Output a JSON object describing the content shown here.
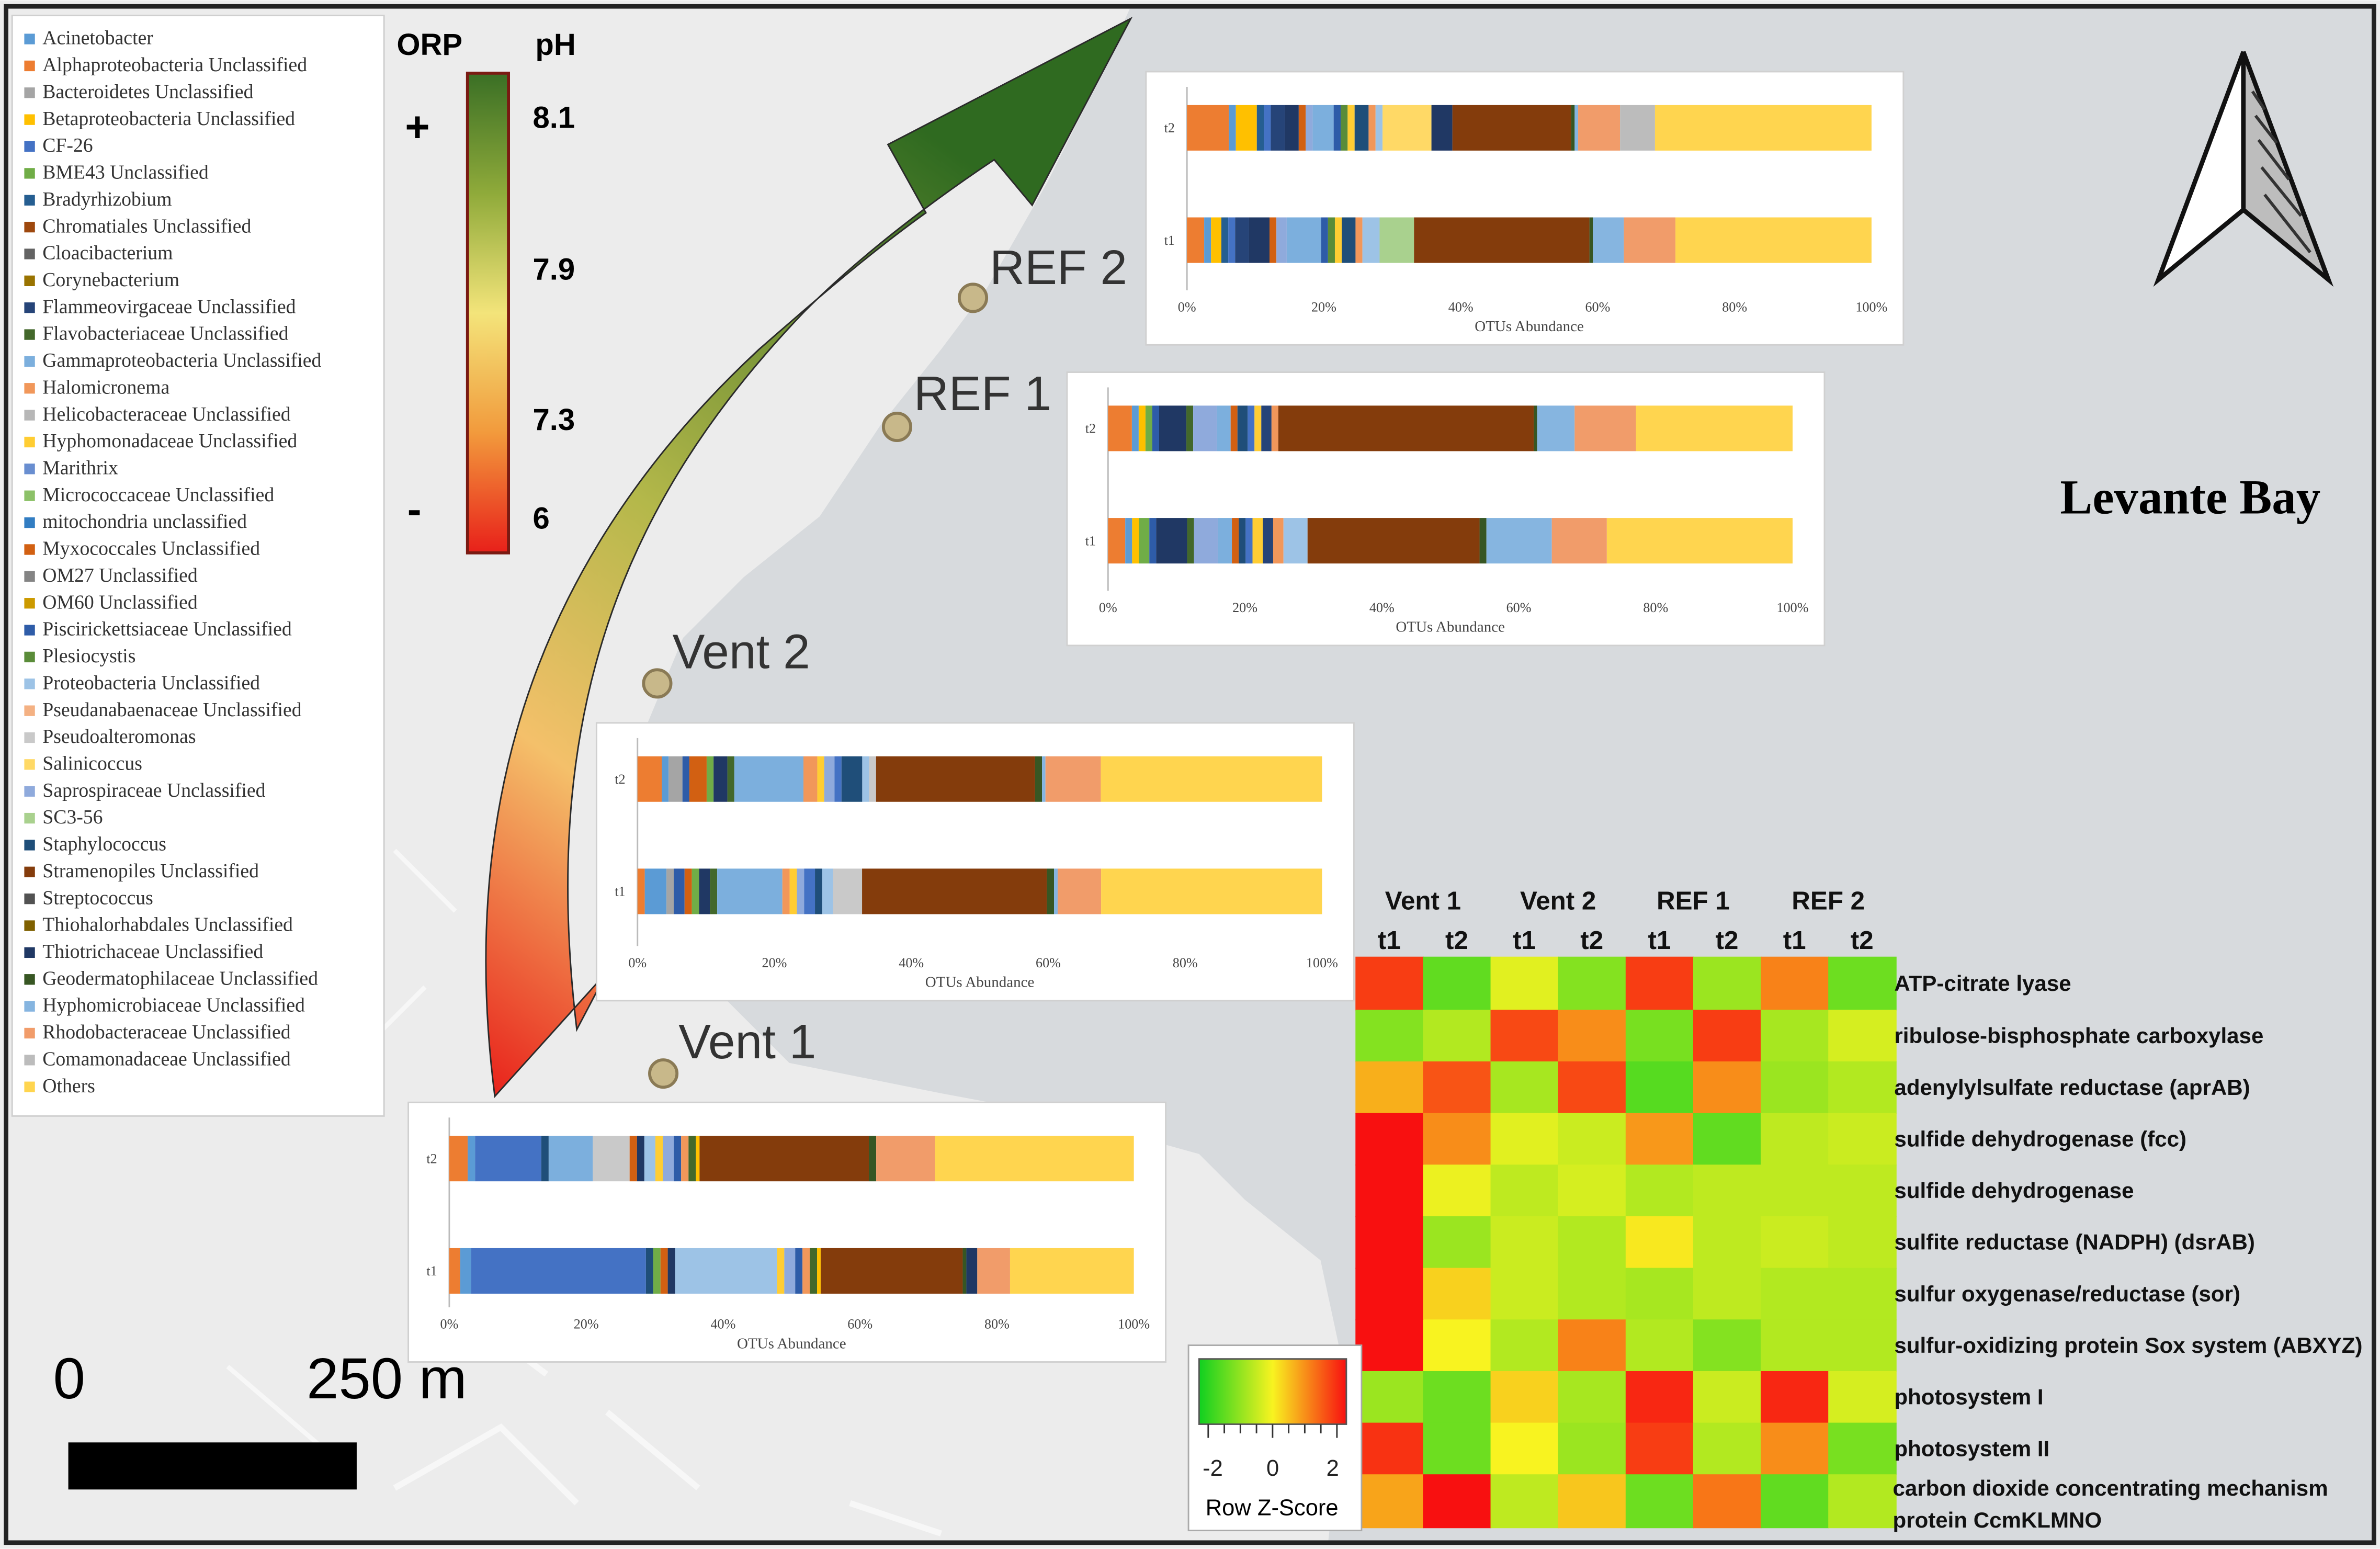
{
  "map": {
    "title": "Levante Bay",
    "sites": [
      "REF 2",
      "REF 1",
      "Vent 2",
      "Vent 1"
    ],
    "scale": {
      "start": "0",
      "end": "250 m"
    }
  },
  "gradient": {
    "orp_label": "ORP",
    "ph_label": "pH",
    "plus": "+",
    "minus": "-",
    "ph_ticks": [
      "8.1",
      "7.9",
      "7.3",
      "6"
    ],
    "colors": [
      "#3a6f25",
      "#8faa3a",
      "#f3e47a",
      "#f29a3c",
      "#e8201a"
    ]
  },
  "legend": [
    {
      "name": "Acinetobacter",
      "color": "#5b9bd5"
    },
    {
      "name": "Alphaproteobacteria Unclassified",
      "color": "#ed7d31"
    },
    {
      "name": "Bacteroidetes Unclassified",
      "color": "#a5a5a5"
    },
    {
      "name": "Betaproteobacteria Unclassified",
      "color": "#ffc000"
    },
    {
      "name": "CF-26",
      "color": "#4472c4"
    },
    {
      "name": "BME43 Unclassified",
      "color": "#70ad47"
    },
    {
      "name": "Bradyrhizobium",
      "color": "#255e91"
    },
    {
      "name": "Chromatiales Unclassified",
      "color": "#9e480e"
    },
    {
      "name": "Cloacibacterium",
      "color": "#636363"
    },
    {
      "name": "Corynebacterium",
      "color": "#997300"
    },
    {
      "name": "Flammeovirgaceae Unclassified",
      "color": "#264478"
    },
    {
      "name": "Flavobacteriaceae Unclassified",
      "color": "#43682b"
    },
    {
      "name": "Gammaproteobacteria Unclassified",
      "color": "#7cafdd"
    },
    {
      "name": "Halomicronema",
      "color": "#f1975a"
    },
    {
      "name": "Helicobacteraceae Unclassified",
      "color": "#b7b7b7"
    },
    {
      "name": "Hyphomonadaceae Unclassified",
      "color": "#ffcd33"
    },
    {
      "name": "Marithrix",
      "color": "#698ed0"
    },
    {
      "name": "Micrococcaceae Unclassified",
      "color": "#8cc168"
    },
    {
      "name": "mitochondria unclassified",
      "color": "#327dc2"
    },
    {
      "name": "Myxococcales Unclassified",
      "color": "#d26012"
    },
    {
      "name": "OM27 Unclassified",
      "color": "#848484"
    },
    {
      "name": "OM60 Unclassified",
      "color": "#cc9a00"
    },
    {
      "name": "Piscirickettsiaceae Unclassified",
      "color": "#2e5ca8"
    },
    {
      "name": "Plesiocystis",
      "color": "#5a8c39"
    },
    {
      "name": "Proteobacteria Unclassified",
      "color": "#9dc3e6"
    },
    {
      "name": "Pseudanabaenaceae Unclassified",
      "color": "#f4b183"
    },
    {
      "name": "Pseudoalteromonas",
      "color": "#c9c9c9"
    },
    {
      "name": "Salinicoccus",
      "color": "#ffd966"
    },
    {
      "name": "Saprospiraceae Unclassified",
      "color": "#8faadc"
    },
    {
      "name": "SC3-56",
      "color": "#a9d18e"
    },
    {
      "name": "Staphylococcus",
      "color": "#1f4e79"
    },
    {
      "name": "Stramenopiles Unclassified",
      "color": "#843c0c"
    },
    {
      "name": "Streptococcus",
      "color": "#525252"
    },
    {
      "name": "Thiohalorhabdales Unclassified",
      "color": "#7f6000"
    },
    {
      "name": "Thiotrichaceae Unclassified",
      "color": "#203864"
    },
    {
      "name": "Geodermatophilaceae Unclassified",
      "color": "#375623"
    },
    {
      "name": "Hyphomicrobiaceae Unclassified",
      "color": "#86b5e0"
    },
    {
      "name": "Rhodobacteraceae Unclassified",
      "color": "#f19c6a"
    },
    {
      "name": "Comamonadaceae Unclassified",
      "color": "#bcbcbc"
    },
    {
      "name": "Others",
      "color": "#ffd54f"
    }
  ],
  "chart_data": [
    {
      "type": "bar",
      "orientation": "horizontal-stacked",
      "site": "REF 2",
      "categories": [
        "t2",
        "t1"
      ],
      "xlabel": "OTUs Abundance",
      "xticks": [
        "0%",
        "20%",
        "40%",
        "60%",
        "80%",
        "100%"
      ],
      "xlim": [
        0,
        100
      ],
      "series": [
        {
          "name": "Alphaproteobacteria Unclassified",
          "values": [
            6,
            2.5
          ]
        },
        {
          "name": "Acinetobacter",
          "values": [
            1,
            1
          ]
        },
        {
          "name": "Betaproteobacteria Unclassified",
          "values": [
            3,
            1.5
          ]
        },
        {
          "name": "Bradyrhizobium",
          "values": [
            1,
            1
          ]
        },
        {
          "name": "CF-26",
          "values": [
            1,
            1
          ]
        },
        {
          "name": "Flammeovirgaceae Unclassified",
          "values": [
            2,
            2
          ]
        },
        {
          "name": "Thiotrichaceae Unclassified",
          "values": [
            2,
            3
          ]
        },
        {
          "name": "Myxococcales Unclassified",
          "values": [
            1,
            1
          ]
        },
        {
          "name": "Saprospiraceae Unclassified",
          "values": [
            1,
            1.5
          ]
        },
        {
          "name": "Gammaproteobacteria Unclassified",
          "values": [
            3,
            5
          ]
        },
        {
          "name": "Piscirickettsiaceae Unclassified",
          "values": [
            1,
            1
          ]
        },
        {
          "name": "Plesiocystis",
          "values": [
            1,
            1
          ]
        },
        {
          "name": "Hyphomonadaceae Unclassified",
          "values": [
            1,
            1
          ]
        },
        {
          "name": "Staphylococcus",
          "values": [
            2,
            2
          ]
        },
        {
          "name": "Halomicronema",
          "values": [
            1,
            1
          ]
        },
        {
          "name": "Proteobacteria Unclassified",
          "values": [
            1,
            2.5
          ]
        },
        {
          "name": "Salinicoccus",
          "values": [
            7,
            0
          ]
        },
        {
          "name": "SC3-56",
          "values": [
            0,
            5
          ]
        },
        {
          "name": "Thiotrichaceae Unclassified",
          "values": [
            3,
            0
          ]
        },
        {
          "name": "Stramenopiles Unclassified",
          "values": [
            17,
            25.5
          ]
        },
        {
          "name": "Geodermatophilaceae Unclassified",
          "values": [
            0.5,
            0.5
          ]
        },
        {
          "name": "Hyphomicrobiaceae Unclassified",
          "values": [
            0.5,
            4.5
          ]
        },
        {
          "name": "Rhodobacteraceae Unclassified",
          "values": [
            6,
            7.5
          ]
        },
        {
          "name": "Comamonadaceae Unclassified",
          "values": [
            5,
            0
          ]
        },
        {
          "name": "Others",
          "values": [
            31,
            28.5
          ]
        }
      ]
    },
    {
      "type": "bar",
      "orientation": "horizontal-stacked",
      "site": "REF 1",
      "categories": [
        "t2",
        "t1"
      ],
      "xlabel": "OTUs Abundance",
      "xticks": [
        "0%",
        "20%",
        "40%",
        "60%",
        "80%",
        "100%"
      ],
      "xlim": [
        0,
        100
      ],
      "series": [
        {
          "name": "Alphaproteobacteria Unclassified",
          "values": [
            3.5,
            2.5
          ]
        },
        {
          "name": "Acinetobacter",
          "values": [
            1,
            1
          ]
        },
        {
          "name": "Betaproteobacteria Unclassified",
          "values": [
            1,
            1
          ]
        },
        {
          "name": "BME43 Unclassified",
          "values": [
            1,
            1.5
          ]
        },
        {
          "name": "Piscirickettsiaceae Unclassified",
          "values": [
            1,
            1
          ]
        },
        {
          "name": "Thiotrichaceae Unclassified",
          "values": [
            4,
            4.5
          ]
        },
        {
          "name": "Flavobacteriaceae Unclassified",
          "values": [
            1,
            1
          ]
        },
        {
          "name": "Saprospiraceae Unclassified",
          "values": [
            3.5,
            3.5
          ]
        },
        {
          "name": "Gammaproteobacteria Unclassified",
          "values": [
            2,
            2
          ]
        },
        {
          "name": "Myxococcales Unclassified",
          "values": [
            1,
            1
          ]
        },
        {
          "name": "Staphylococcus",
          "values": [
            1.5,
            1
          ]
        },
        {
          "name": "CF-26",
          "values": [
            1,
            1
          ]
        },
        {
          "name": "Hyphomonadaceae Unclassified",
          "values": [
            1,
            1.5
          ]
        },
        {
          "name": "Flammeovirgaceae Unclassified",
          "values": [
            1.5,
            1.5
          ]
        },
        {
          "name": "Halomicronema",
          "values": [
            1,
            1.5
          ]
        },
        {
          "name": "Proteobacteria Unclassified",
          "values": [
            0,
            3.5
          ]
        },
        {
          "name": "Stramenopiles Unclassified",
          "values": [
            37.5,
            25
          ]
        },
        {
          "name": "Geodermatophilaceae Unclassified",
          "values": [
            0.5,
            1
          ]
        },
        {
          "name": "Hyphomicrobiaceae Unclassified",
          "values": [
            5.5,
            9.5
          ]
        },
        {
          "name": "Rhodobacteraceae Unclassified",
          "values": [
            9,
            8
          ]
        },
        {
          "name": "Others",
          "values": [
            23,
            27
          ]
        }
      ]
    },
    {
      "type": "bar",
      "orientation": "horizontal-stacked",
      "site": "Vent 2",
      "categories": [
        "t2",
        "t1"
      ],
      "xlabel": "OTUs Abundance",
      "xticks": [
        "0%",
        "20%",
        "40%",
        "60%",
        "80%",
        "100%"
      ],
      "xlim": [
        0,
        100
      ],
      "series": [
        {
          "name": "Alphaproteobacteria Unclassified",
          "values": [
            3.5,
            1
          ]
        },
        {
          "name": "Acinetobacter",
          "values": [
            1,
            3
          ]
        },
        {
          "name": "Bacteroidetes Unclassified",
          "values": [
            2,
            1
          ]
        },
        {
          "name": "Piscirickettsiaceae Unclassified",
          "values": [
            1,
            1.5
          ]
        },
        {
          "name": "Myxococcales Unclassified",
          "values": [
            2.5,
            1
          ]
        },
        {
          "name": "BME43 Unclassified",
          "values": [
            1,
            1
          ]
        },
        {
          "name": "Thiotrichaceae Unclassified",
          "values": [
            2,
            1.5
          ]
        },
        {
          "name": "Flavobacteriaceae Unclassified",
          "values": [
            1,
            1
          ]
        },
        {
          "name": "Gammaproteobacteria Unclassified",
          "values": [
            10,
            9
          ]
        },
        {
          "name": "Halomicronema",
          "values": [
            2,
            1
          ]
        },
        {
          "name": "Hyphomonadaceae Unclassified",
          "values": [
            1,
            1
          ]
        },
        {
          "name": "Saprospiraceae Unclassified",
          "values": [
            1.5,
            1
          ]
        },
        {
          "name": "CF-26",
          "values": [
            1,
            1.5
          ]
        },
        {
          "name": "Staphylococcus",
          "values": [
            3,
            1
          ]
        },
        {
          "name": "Proteobacteria Unclassified",
          "values": [
            1,
            1.5
          ]
        },
        {
          "name": "Pseudoalteromonas",
          "values": [
            1,
            4
          ]
        },
        {
          "name": "Stramenopiles Unclassified",
          "values": [
            23,
            25.5
          ]
        },
        {
          "name": "Geodermatophilaceae Unclassified",
          "values": [
            1,
            1
          ]
        },
        {
          "name": "Hyphomicrobiaceae Unclassified",
          "values": [
            0.5,
            0.5
          ]
        },
        {
          "name": "Rhodobacteraceae Unclassified",
          "values": [
            8,
            6
          ]
        },
        {
          "name": "Others",
          "values": [
            32,
            30.5
          ]
        }
      ]
    },
    {
      "type": "bar",
      "orientation": "horizontal-stacked",
      "site": "Vent 1",
      "categories": [
        "t2",
        "t1"
      ],
      "xlabel": "OTUs Abundance",
      "xticks": [
        "0%",
        "20%",
        "40%",
        "60%",
        "80%",
        "100%"
      ],
      "xlim": [
        0,
        100
      ],
      "series": [
        {
          "name": "Alphaproteobacteria Unclassified",
          "values": [
            2.5,
            1.5
          ]
        },
        {
          "name": "Acinetobacter",
          "values": [
            1,
            1.5
          ]
        },
        {
          "name": "CF-26",
          "values": [
            9,
            24
          ]
        },
        {
          "name": "Staphylococcus",
          "values": [
            1,
            1
          ]
        },
        {
          "name": "Gammaproteobacteria Unclassified",
          "values": [
            6,
            0
          ]
        },
        {
          "name": "Pseudoalteromonas",
          "values": [
            5,
            0
          ]
        },
        {
          "name": "BME43 Unclassified",
          "values": [
            0,
            1
          ]
        },
        {
          "name": "Myxococcales Unclassified",
          "values": [
            1,
            1
          ]
        },
        {
          "name": "Thiotrichaceae Unclassified",
          "values": [
            1,
            1
          ]
        },
        {
          "name": "Proteobacteria Unclassified",
          "values": [
            1.5,
            14
          ]
        },
        {
          "name": "Hyphomonadaceae Unclassified",
          "values": [
            1,
            1
          ]
        },
        {
          "name": "Saprospiraceae Unclassified",
          "values": [
            1.5,
            1.5
          ]
        },
        {
          "name": "Piscirickettsiaceae Unclassified",
          "values": [
            1,
            1
          ]
        },
        {
          "name": "Halomicronema",
          "values": [
            1,
            1
          ]
        },
        {
          "name": "Flavobacteriaceae Unclassified",
          "values": [
            1,
            1
          ]
        },
        {
          "name": "Betaproteobacteria Unclassified",
          "values": [
            0.5,
            0.5
          ]
        },
        {
          "name": "Stramenopiles Unclassified",
          "values": [
            23,
            19.5
          ]
        },
        {
          "name": "Geodermatophilaceae Unclassified",
          "values": [
            1,
            0.5
          ]
        },
        {
          "name": "Thiotrichaceae Unclassified",
          "values": [
            0,
            1.5
          ]
        },
        {
          "name": "Rhodobacteraceae Unclassified",
          "values": [
            8,
            4.5
          ]
        },
        {
          "name": "Others",
          "values": [
            27,
            17
          ]
        }
      ]
    },
    {
      "type": "heatmap",
      "title": "",
      "groups": [
        "Vent 1",
        "Vent 2",
        "REF 1",
        "REF 2"
      ],
      "columns": [
        "t1",
        "t2",
        "t1",
        "t2",
        "t1",
        "t2",
        "t1",
        "t2"
      ],
      "rows": [
        "ATP-citrate lyase",
        "ribulose-bisphosphate carboxylase",
        "adenylylsulfate reductase (aprAB)",
        "sulfide dehydrogenase (fcc)",
        "sulfide dehydrogenase",
        "sulfite reductase (NADPH) (dsrAB)",
        "sulfur oxygenase/reductase (sor)",
        "sulfur-oxidizing protein Sox system (ABXYZ)",
        "photosystem I",
        "photosystem II",
        "carbon dioxide concentrating mechanism protein CcmKLMNO"
      ],
      "values": [
        [
          1.6,
          -1.3,
          -0.2,
          -1.0,
          1.6,
          -0.8,
          1.0,
          -1.2
        ],
        [
          -1.0,
          -0.6,
          1.5,
          0.9,
          -1.1,
          1.6,
          -0.7,
          -0.3
        ],
        [
          0.6,
          1.4,
          -0.7,
          1.5,
          -1.4,
          0.9,
          -0.8,
          -0.6
        ],
        [
          2.0,
          0.9,
          -0.2,
          -0.4,
          0.8,
          -1.3,
          -0.5,
          -0.4
        ],
        [
          2.3,
          -0.1,
          -0.5,
          -0.3,
          -0.6,
          -0.5,
          -0.5,
          -0.5
        ],
        [
          2.3,
          -0.8,
          -0.4,
          -0.6,
          0.1,
          -0.5,
          -0.4,
          -0.5
        ],
        [
          2.3,
          0.3,
          -0.4,
          -0.6,
          -0.7,
          -0.5,
          -0.6,
          -0.6
        ],
        [
          2.1,
          0.0,
          -0.6,
          1.0,
          -0.6,
          -1.0,
          -0.6,
          -0.6
        ],
        [
          -0.8,
          -1.2,
          0.3,
          -0.7,
          1.8,
          -0.4,
          1.8,
          -0.3
        ],
        [
          1.7,
          -1.2,
          0.0,
          -0.8,
          1.6,
          -0.6,
          0.9,
          -1.1
        ],
        [
          0.7,
          2.0,
          -0.5,
          0.4,
          -1.2,
          1.1,
          -1.3,
          -0.6
        ]
      ],
      "color_scale": {
        "label": "Row Z-Score",
        "ticks": [
          "-2",
          "0",
          "2"
        ],
        "min": -2,
        "max": 2,
        "colors": [
          "#10d020",
          "#f8f320",
          "#f81010"
        ]
      }
    }
  ]
}
